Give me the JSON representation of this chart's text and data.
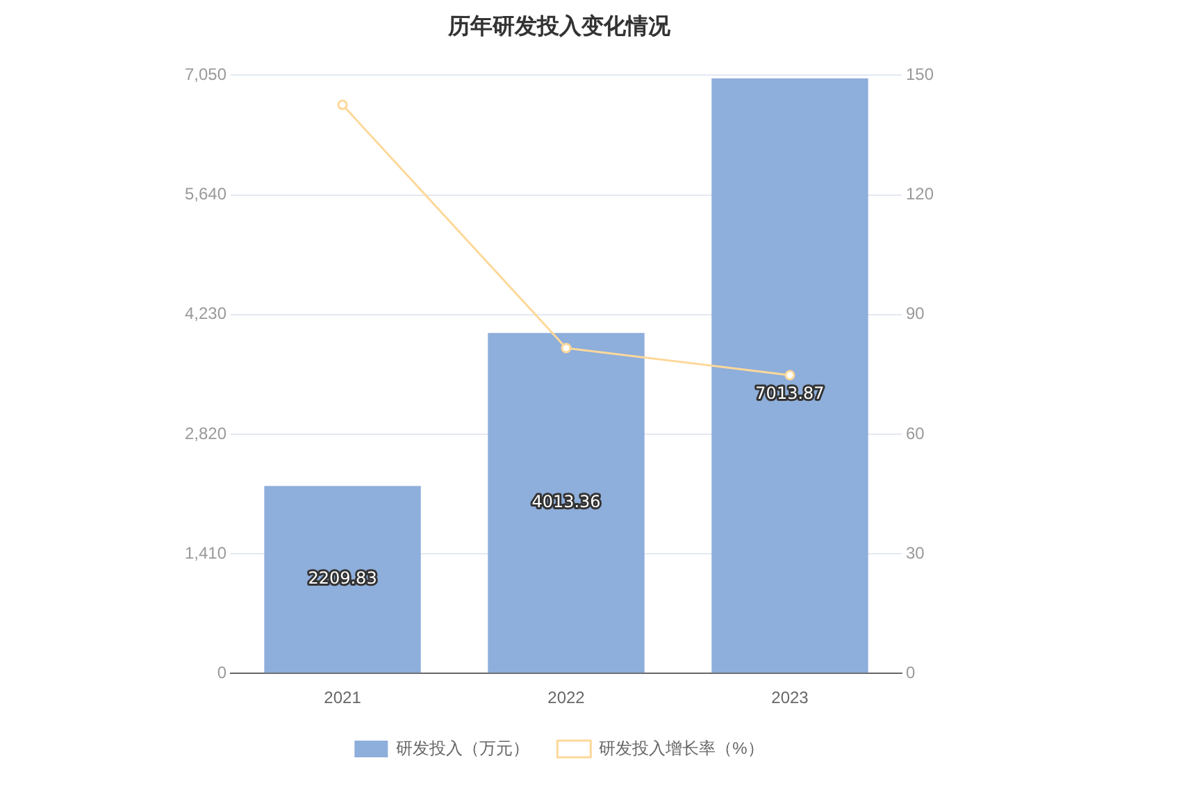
{
  "chart_data": {
    "type": "bar",
    "title": "历年研发投入变化情况",
    "categories": [
      "2021",
      "2022",
      "2023"
    ],
    "series": [
      {
        "name": "研发投入（万元）",
        "color": "#8eaedb",
        "values": [
          2209.83,
          4013.36,
          7013.87
        ],
        "value_labels": [
          "2209.83",
          "4013.36",
          "7013.87"
        ]
      },
      {
        "name": "研发投入增长率（%）",
        "type": "line",
        "axis": "y2",
        "color": "#fdd89a",
        "values": [
          142.6,
          81.6,
          74.8
        ]
      }
    ],
    "ylim": [
      0,
      7050
    ],
    "yticks": [
      0,
      {
        "value": 1410,
        "label": "1,410"
      },
      {
        "value": 2820,
        "label": "2,820"
      },
      {
        "value": 4230,
        "label": "4,230"
      },
      {
        "value": 5640,
        "label": "5,640"
      },
      {
        "value": 7050,
        "label": "7,050"
      }
    ],
    "y2lim": [
      0,
      150
    ],
    "y2ticks": [
      0,
      30,
      60,
      90,
      120,
      150
    ],
    "grid": "y",
    "legend": "bottom",
    "marker": "circle"
  }
}
